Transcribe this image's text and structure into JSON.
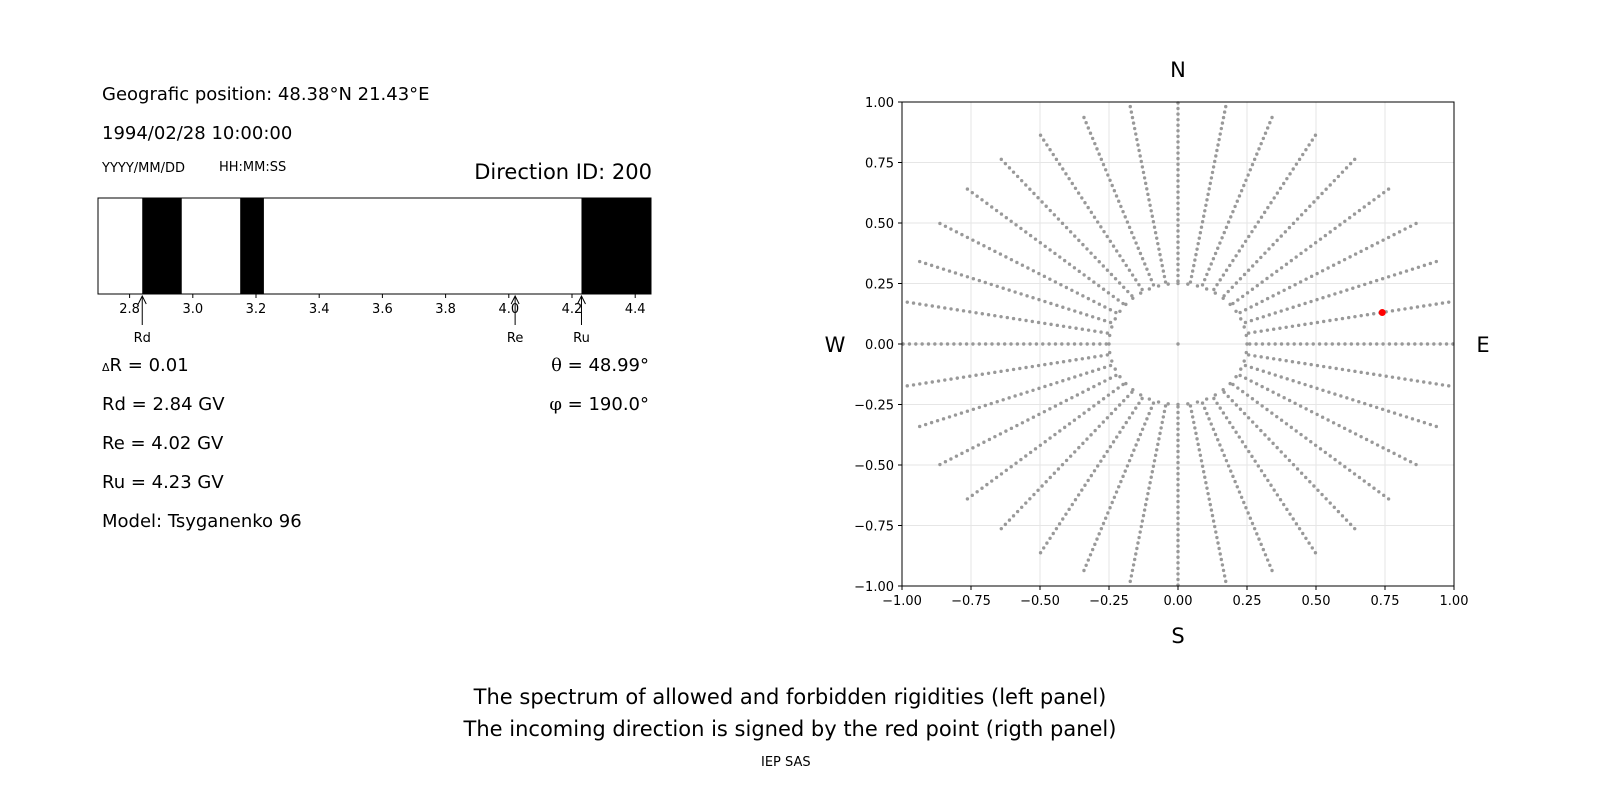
{
  "header": {
    "position_line": "Geografic position: 48.38°N 21.43°E",
    "datetime": "1994/02/28 10:00:00",
    "date_format": "YYYY/MM/DD",
    "time_format": "HH:MM:SS",
    "direction_id": "Direction ID: 200"
  },
  "stats": {
    "dR": "R = 0.01",
    "dR_symbol": "Δ",
    "Rd": "Rd = 2.84 GV",
    "Re": "Re = 4.02 GV",
    "Ru": "Ru = 4.23 GV",
    "model": "Model: Tsyganenko 96",
    "theta_symbol": "θ",
    "theta": " = 48.99°",
    "phi_symbol": "φ",
    "phi": " = 190.0°"
  },
  "chart_data": [
    {
      "type": "bar",
      "name": "rigidity-spectrum",
      "xlim": [
        2.7,
        4.45
      ],
      "xticks": [
        2.8,
        3.0,
        3.2,
        3.4,
        3.6,
        3.8,
        4.0,
        4.2,
        4.4
      ],
      "tick_labels": [
        "2.8",
        "3.0",
        "3.2",
        "3.4",
        "3.6",
        "3.8",
        "4.0",
        "4.2",
        "4.4"
      ],
      "forbidden_bands": [
        [
          2.84,
          2.965
        ],
        [
          3.15,
          3.225
        ],
        [
          4.23,
          4.45
        ]
      ],
      "markers": [
        {
          "label": "Rd",
          "value": 2.84
        },
        {
          "label": "Re",
          "value": 4.02
        },
        {
          "label": "Ru",
          "value": 4.23
        }
      ],
      "colors": {
        "forbidden": "#000000",
        "allowed": "#ffffff"
      }
    },
    {
      "type": "scatter",
      "name": "incoming-directions",
      "xlim": [
        -1.0,
        1.0
      ],
      "ylim": [
        -1.0,
        1.0
      ],
      "ticks": [
        -1.0,
        -0.75,
        -0.5,
        -0.25,
        0.0,
        0.25,
        0.5,
        0.75,
        1.0
      ],
      "tick_labels": [
        "−1.00",
        "−0.75",
        "−0.50",
        "−0.25",
        "0.00",
        "0.25",
        "0.50",
        "0.75",
        "1.00"
      ],
      "grid": true,
      "compass": {
        "top": "N",
        "bottom": "S",
        "left": "W",
        "right": "E"
      },
      "spokes": 36,
      "inner_ring_radius": 0.25,
      "highlight": {
        "x": 0.74,
        "y": 0.13,
        "color": "#ff0000"
      },
      "point_color": "#999999"
    }
  ],
  "footer": {
    "line1": "The spectrum of allowed and forbidden rigidities (left panel)",
    "line2": "The incoming direction is signed by the red point (rigth panel)",
    "credit": "IEP SAS"
  }
}
